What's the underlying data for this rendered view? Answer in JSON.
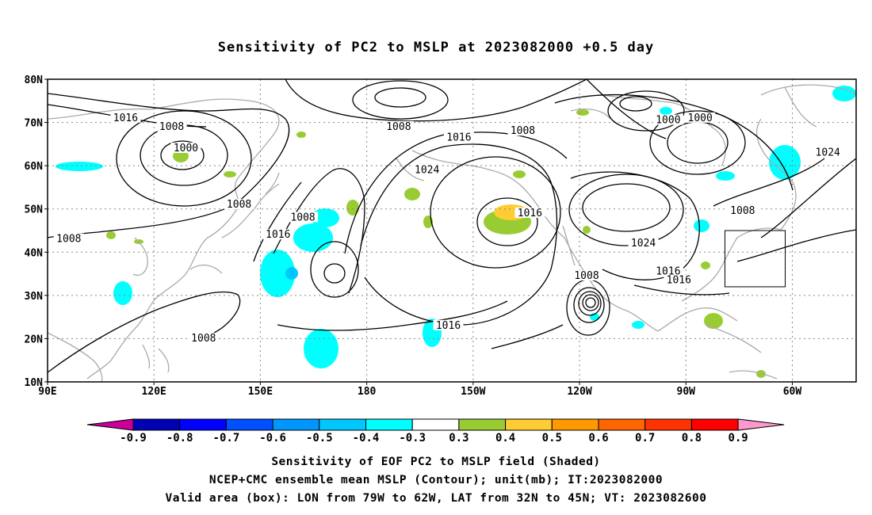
{
  "title": "Sensitivity of PC2 to MSLP at 2023082000 +0.5 day",
  "map": {
    "lat_labels": [
      {
        "lat": 80,
        "text": "80N"
      },
      {
        "lat": 70,
        "text": "70N"
      },
      {
        "lat": 60,
        "text": "60N"
      },
      {
        "lat": 50,
        "text": "50N"
      },
      {
        "lat": 40,
        "text": "40N"
      },
      {
        "lat": 30,
        "text": "30N"
      },
      {
        "lat": 20,
        "text": "20N"
      },
      {
        "lat": 10,
        "text": "10N"
      }
    ],
    "lon_labels": [
      {
        "lon": 90,
        "text": "90E"
      },
      {
        "lon": 120,
        "text": "120E"
      },
      {
        "lon": 150,
        "text": "150E"
      },
      {
        "lon": 180,
        "text": "180"
      },
      {
        "lon": 210,
        "text": "150W"
      },
      {
        "lon": 240,
        "text": "120W"
      },
      {
        "lon": 270,
        "text": "90W"
      },
      {
        "lon": 300,
        "text": "60W"
      }
    ],
    "contour_labels": [
      {
        "text": "1016",
        "lon": 112,
        "lat": 70.5
      },
      {
        "text": "1008",
        "lon": 125,
        "lat": 68.5
      },
      {
        "text": "1000",
        "lon": 129,
        "lat": 63.5
      },
      {
        "text": "1008",
        "lon": 144,
        "lat": 50.5
      },
      {
        "text": "1016",
        "lon": 155,
        "lat": 43.5
      },
      {
        "text": "1008",
        "lon": 162,
        "lat": 47.5
      },
      {
        "text": "1008",
        "lon": 96,
        "lat": 42.5
      },
      {
        "text": "1008",
        "lon": 134,
        "lat": 19.5
      },
      {
        "text": "1008",
        "lon": 189,
        "lat": 68.5
      },
      {
        "text": "1016",
        "lon": 206,
        "lat": 66
      },
      {
        "text": "1024",
        "lon": 197,
        "lat": 58.5
      },
      {
        "text": "1008",
        "lon": 224,
        "lat": 67.5
      },
      {
        "text": "1016",
        "lon": 226,
        "lat": 48.5
      },
      {
        "text": "1008",
        "lon": 242,
        "lat": 34
      },
      {
        "text": "1024",
        "lon": 258,
        "lat": 41.5
      },
      {
        "text": "1016",
        "lon": 265,
        "lat": 35
      },
      {
        "text": "1016",
        "lon": 268,
        "lat": 33
      },
      {
        "text": "1000",
        "lon": 265,
        "lat": 70
      },
      {
        "text": "1000",
        "lon": 274,
        "lat": 70.5
      },
      {
        "text": "1008",
        "lon": 286,
        "lat": 49
      },
      {
        "text": "1024",
        "lon": 310,
        "lat": 62.5
      },
      {
        "text": "1016",
        "lon": 203,
        "lat": 22.5
      }
    ],
    "valid_box": {
      "lon_min": 281,
      "lon_max": 298,
      "lat_min": 32,
      "lat_max": 45
    }
  },
  "colorbar": {
    "labels": [
      "-0.9",
      "-0.8",
      "-0.7",
      "-0.6",
      "-0.5",
      "-0.4",
      "-0.3",
      "0.3",
      "0.4",
      "0.5",
      "0.6",
      "0.7",
      "0.8",
      "0.9"
    ],
    "colors": [
      "#0000b4",
      "#0000ff",
      "#0050ff",
      "#0096ff",
      "#00c8ff",
      "#00ffff",
      "#ffffff",
      "#99cc33",
      "#ffcc33",
      "#ff9900",
      "#ff6600",
      "#ff3300",
      "#ff0000"
    ],
    "low_end_color": "#cc0099",
    "high_end_color": "#ff99cc"
  },
  "captions": {
    "line1": "Sensitivity of EOF PC2 to MSLP field (Shaded)",
    "line2": "NCEP+CMC ensemble mean MSLP (Contour); unit(mb); IT:2023082000",
    "line3": "Valid area (box): LON from 79W to 62W, LAT from 32N to 45N; VT: 2023082600"
  }
}
